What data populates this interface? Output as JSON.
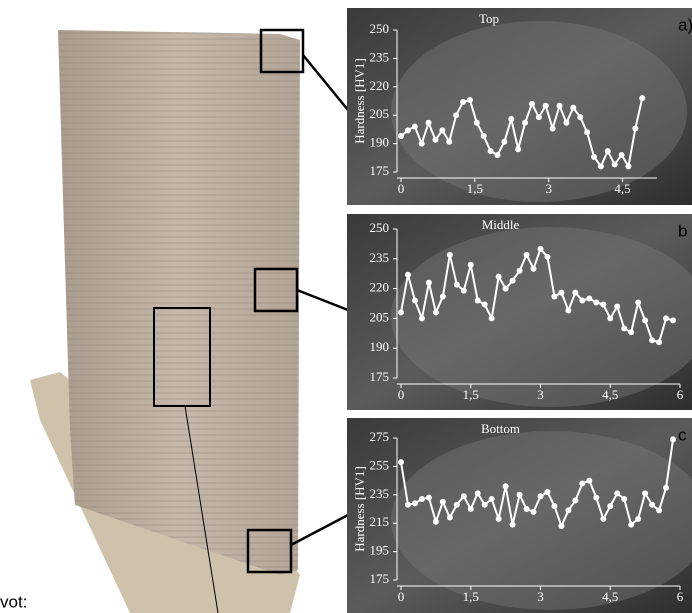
{
  "chart_data": [
    {
      "type": "line",
      "title": "Top",
      "panel": "a)",
      "ylabel": "Hardness [HV1]",
      "color": "#ffffff",
      "x": [
        0,
        0.14,
        0.28,
        0.42,
        0.56,
        0.7,
        0.84,
        0.98,
        1.12,
        1.26,
        1.4,
        1.54,
        1.68,
        1.82,
        1.96,
        2.1,
        2.24,
        2.38,
        2.52,
        2.66,
        2.8,
        2.94,
        3.08,
        3.22,
        3.36,
        3.5,
        3.64,
        3.78,
        3.92,
        4.06,
        4.2,
        4.34,
        4.48,
        4.62,
        4.76,
        4.9
      ],
      "values": [
        194,
        197,
        199,
        190,
        201,
        192,
        197,
        191,
        205,
        212,
        213,
        201,
        194,
        186,
        184,
        191,
        203,
        187,
        201,
        211,
        204,
        210,
        198,
        210,
        201,
        209,
        204,
        196,
        183,
        178,
        186,
        179,
        184,
        178,
        198,
        214
      ],
      "xlim": [
        0,
        5.2
      ],
      "ylim": [
        175,
        250
      ],
      "xticks": [
        0,
        {
          "value": 1.5,
          "label": "1,5"
        },
        3,
        {
          "value": 4.5,
          "label": "4,5"
        }
      ],
      "yticks": [
        175,
        190,
        205,
        220,
        235,
        250
      ]
    },
    {
      "type": "line",
      "title": "Middle",
      "panel": "b",
      "color": "#ffffff",
      "x": [
        0,
        0.15,
        0.3,
        0.45,
        0.6,
        0.75,
        0.9,
        1.05,
        1.2,
        1.35,
        1.5,
        1.65,
        1.8,
        1.95,
        2.1,
        2.25,
        2.4,
        2.55,
        2.7,
        2.85,
        3,
        3.15,
        3.3,
        3.45,
        3.6,
        3.75,
        3.9,
        4.05,
        4.2,
        4.35,
        4.5,
        4.65,
        4.8,
        4.95,
        5.1,
        5.25,
        5.4,
        5.55,
        5.7,
        5.85
      ],
      "values": [
        208,
        227,
        214,
        205,
        223,
        208,
        216,
        237,
        222,
        219,
        232,
        214,
        212,
        205,
        226,
        220,
        224,
        229,
        237,
        230,
        240,
        236,
        216,
        218,
        209,
        218,
        214,
        215,
        213,
        212,
        205,
        211,
        200,
        198,
        213,
        204,
        194,
        193,
        205,
        204
      ],
      "xlim": [
        0,
        6
      ],
      "ylim": [
        175,
        250
      ],
      "xticks": [
        0,
        {
          "value": 1.5,
          "label": "1,5"
        },
        3,
        {
          "value": 4.5,
          "label": "4,5"
        },
        6
      ],
      "yticks": [
        175,
        190,
        205,
        220,
        235,
        250
      ]
    },
    {
      "type": "line",
      "title": "Bottom",
      "panel": "c",
      "ylabel": "Hardness [HV1]",
      "color": "#ffffff",
      "x": [
        0,
        0.15,
        0.3,
        0.45,
        0.6,
        0.75,
        0.9,
        1.05,
        1.2,
        1.35,
        1.5,
        1.65,
        1.8,
        1.95,
        2.1,
        2.25,
        2.4,
        2.55,
        2.7,
        2.85,
        3,
        3.15,
        3.3,
        3.45,
        3.6,
        3.75,
        3.9,
        4.05,
        4.2,
        4.35,
        4.5,
        4.65,
        4.8,
        4.95,
        5.1,
        5.25,
        5.4,
        5.55,
        5.7,
        5.85
      ],
      "values": [
        258,
        228,
        229,
        232,
        233,
        216,
        230,
        219,
        228,
        234,
        225,
        236,
        228,
        232,
        218,
        241,
        214,
        235,
        225,
        223,
        234,
        237,
        227,
        213,
        224,
        231,
        243,
        245,
        233,
        218,
        227,
        236,
        232,
        214,
        218,
        236,
        228,
        224,
        240,
        274
      ],
      "xlim": [
        0,
        6
      ],
      "ylim": [
        175,
        275
      ],
      "xticks": [
        0,
        {
          "value": 1.5,
          "label": "1,5"
        },
        3,
        {
          "value": 4.5,
          "label": "4,5"
        },
        6
      ],
      "yticks": [
        175,
        195,
        215,
        235,
        255,
        275
      ]
    }
  ],
  "caption": "vot:"
}
